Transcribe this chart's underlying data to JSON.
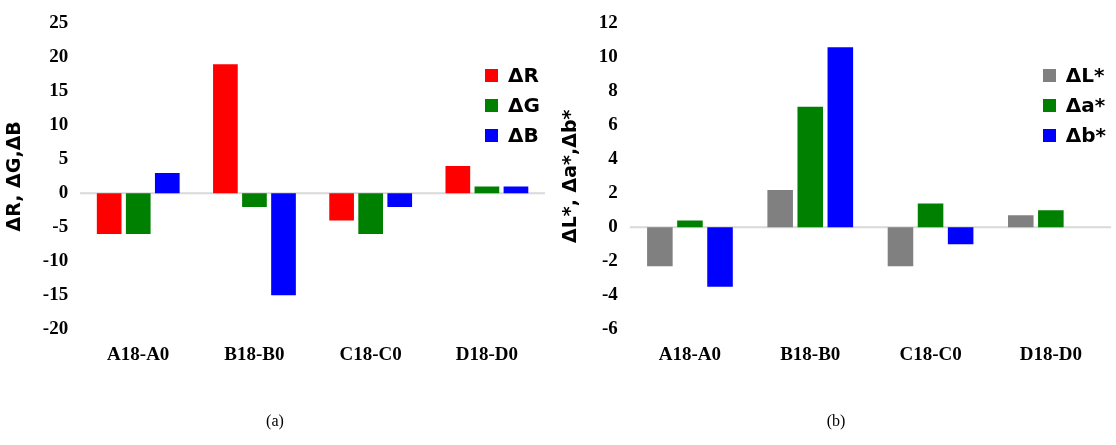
{
  "chart_data": [
    {
      "type": "bar",
      "ylabel": "ΔR, ΔG,ΔB",
      "categories": [
        "A18-A0",
        "B18-B0",
        "C18-C0",
        "D18-D0"
      ],
      "series": [
        {
          "name": "ΔR",
          "color": "#ff0000",
          "values": [
            -6,
            19,
            -4,
            4
          ]
        },
        {
          "name": "ΔG",
          "color": "#008000",
          "values": [
            -6,
            -2,
            -6,
            1
          ]
        },
        {
          "name": "ΔB",
          "color": "#0000ff",
          "values": [
            3,
            -15,
            -2,
            1
          ]
        }
      ],
      "ylim": [
        -20,
        25
      ],
      "yticks": [
        -20,
        -15,
        -10,
        -5,
        0,
        5,
        10,
        15,
        20,
        25
      ],
      "ref_lines": [
        {
          "axis": "y",
          "value": 0,
          "color": "#d9d9d9"
        }
      ],
      "legend": "top right",
      "annotations": [
        "(a)"
      ]
    },
    {
      "type": "bar",
      "ylabel": "ΔL*, Δa*,Δb*",
      "categories": [
        "A18-A0",
        "B18-B0",
        "C18-C0",
        "D18-D0"
      ],
      "series": [
        {
          "name": "ΔL*",
          "color": "#808080",
          "values": [
            -2.3,
            2.2,
            -2.3,
            0.7
          ]
        },
        {
          "name": "Δa*",
          "color": "#008000",
          "values": [
            0.4,
            7.1,
            1.4,
            1.0
          ]
        },
        {
          "name": "Δb*",
          "color": "#0000ff",
          "values": [
            -3.5,
            10.6,
            -1.0,
            0
          ]
        }
      ],
      "ylim": [
        -6,
        12
      ],
      "yticks": [
        -6,
        -4,
        -2,
        0,
        2,
        4,
        6,
        8,
        10,
        12
      ],
      "ref_lines": [
        {
          "axis": "y",
          "value": 0,
          "color": "#d9d9d9"
        }
      ],
      "legend": "top right",
      "annotations": [
        "(b)"
      ]
    }
  ]
}
